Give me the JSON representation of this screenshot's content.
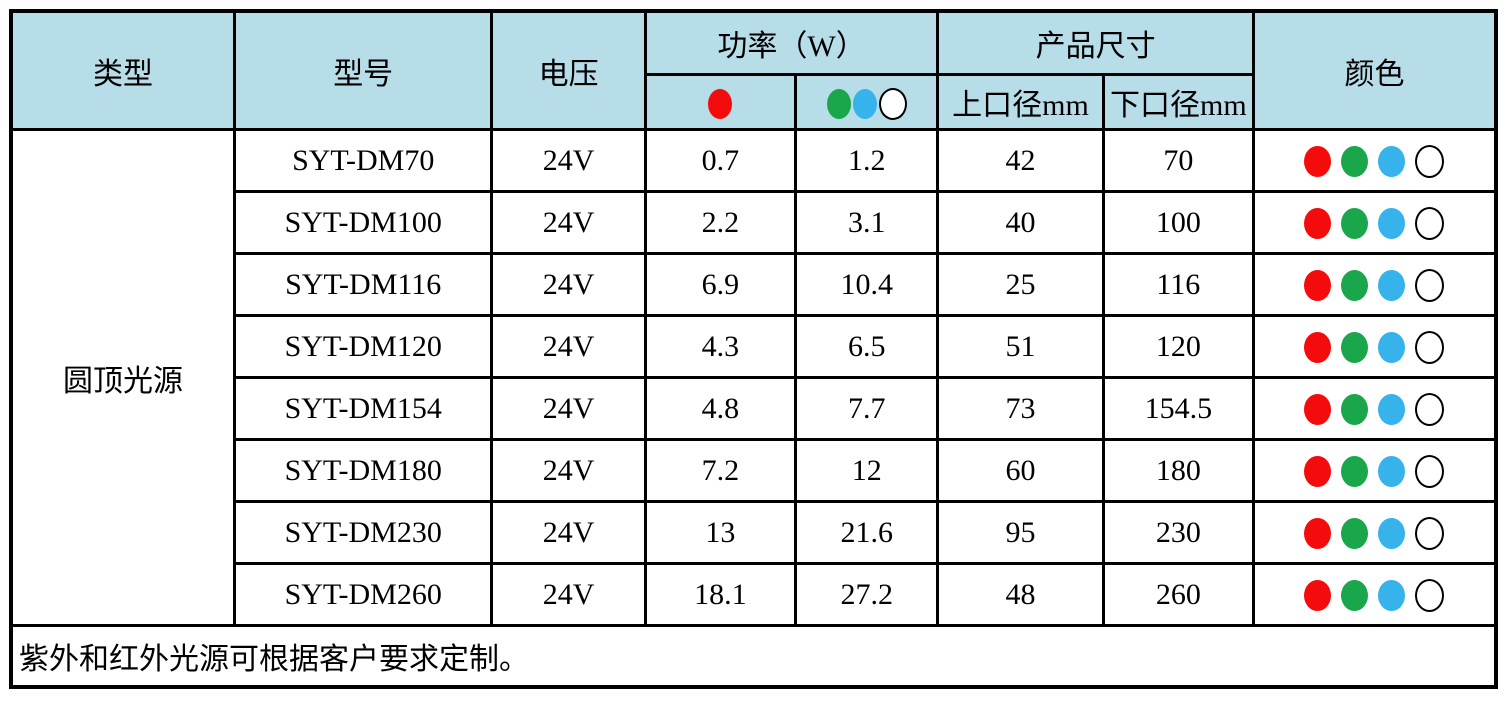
{
  "table": {
    "header": {
      "type": "类型",
      "model": "型号",
      "voltage": "电压",
      "power_group": "功率（W）",
      "size_group": "产品尺寸",
      "top_diameter": "上口径mm",
      "bottom_diameter": "下口径mm",
      "color": "颜色"
    },
    "category": "圆顶光源",
    "rows": [
      {
        "model": "SYT-DM70",
        "voltage": "24V",
        "power_red": "0.7",
        "power_gbw": "1.2",
        "top_mm": "42",
        "bottom_mm": "70"
      },
      {
        "model": "SYT-DM100",
        "voltage": "24V",
        "power_red": "2.2",
        "power_gbw": "3.1",
        "top_mm": "40",
        "bottom_mm": "100"
      },
      {
        "model": "SYT-DM116",
        "voltage": "24V",
        "power_red": "6.9",
        "power_gbw": "10.4",
        "top_mm": "25",
        "bottom_mm": "116"
      },
      {
        "model": "SYT-DM120",
        "voltage": "24V",
        "power_red": "4.3",
        "power_gbw": "6.5",
        "top_mm": "51",
        "bottom_mm": "120"
      },
      {
        "model": "SYT-DM154",
        "voltage": "24V",
        "power_red": "4.8",
        "power_gbw": "7.7",
        "top_mm": "73",
        "bottom_mm": "154.5"
      },
      {
        "model": "SYT-DM180",
        "voltage": "24V",
        "power_red": "7.2",
        "power_gbw": "12",
        "top_mm": "60",
        "bottom_mm": "180"
      },
      {
        "model": "SYT-DM230",
        "voltage": "24V",
        "power_red": "13",
        "power_gbw": "21.6",
        "top_mm": "95",
        "bottom_mm": "230"
      },
      {
        "model": "SYT-DM260",
        "voltage": "24V",
        "power_red": "18.1",
        "power_gbw": "27.2",
        "top_mm": "48",
        "bottom_mm": "260"
      }
    ],
    "footer_note": "紫外和红外光源可根据客户要求定制。"
  },
  "icons": {
    "power_red_header": "red-dot-icon",
    "power_gbw_header": "green-dot-icon blue-dot-icon white-dot-icon",
    "color_cell": "red-dot-icon green-dot-icon blue-dot-icon white-dot-icon"
  },
  "colors": {
    "red": "#f40b0b",
    "green": "#1aa64b",
    "blue": "#35b3ea",
    "white": "#ffffff",
    "header_bg": "#b7dde8",
    "border": "#000000"
  }
}
